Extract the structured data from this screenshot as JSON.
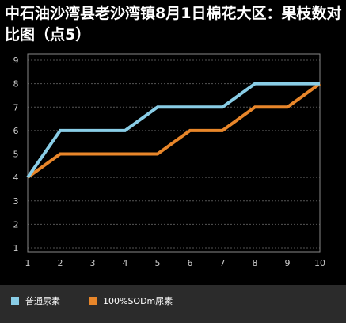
{
  "chart_data": {
    "type": "line",
    "title": "中石油沙湾县老沙湾镇8月1日棉花大区：果枝数对比图（点5）",
    "x": [
      1,
      2,
      3,
      4,
      5,
      6,
      7,
      8,
      9,
      10
    ],
    "ylim": [
      1,
      9
    ],
    "yticks": [
      1,
      2,
      3,
      4,
      5,
      6,
      7,
      8,
      9
    ],
    "grid": true,
    "legend_position": "bottom",
    "series": [
      {
        "name": "普通尿素",
        "color": "#89cde6",
        "values": [
          4,
          6,
          6,
          6,
          7,
          7,
          7,
          8,
          8,
          8
        ]
      },
      {
        "name": "100%SODm尿素",
        "color": "#e8862a",
        "values": [
          4,
          5,
          5,
          5,
          5,
          6,
          6,
          7,
          7,
          8
        ]
      }
    ]
  },
  "colors": {
    "background": "#000000",
    "plot_border": "#888888",
    "grid": "#555555",
    "tick_text": "#cccccc",
    "legend_bg": "#2b2b2b"
  }
}
